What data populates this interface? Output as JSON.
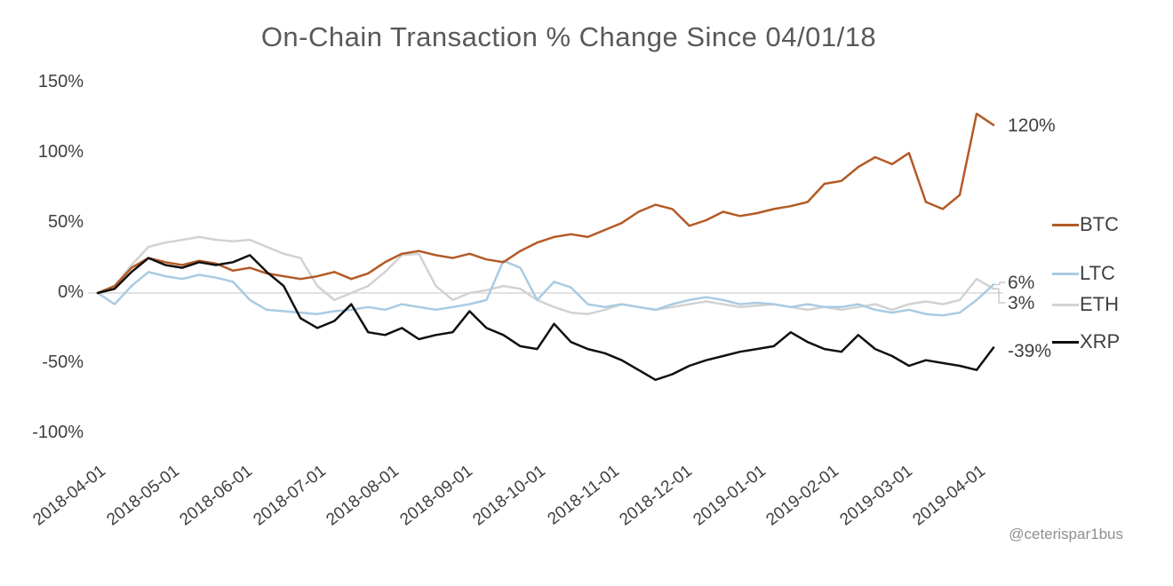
{
  "title": "On-Chain Transaction % Change Since 04/01/18",
  "watermark": "@ceterispar1bus",
  "chart_data": {
    "type": "line",
    "title": "On-Chain Transaction % Change Since 04/01/18",
    "xlabel": "",
    "ylabel": "",
    "ylim": [
      -100,
      150
    ],
    "grid": "horizontal zero line only",
    "legend_position": "right",
    "x": [
      "2018-04-01",
      "2018-04-08",
      "2018-04-15",
      "2018-04-22",
      "2018-04-29",
      "2018-05-06",
      "2018-05-13",
      "2018-05-20",
      "2018-05-27",
      "2018-06-03",
      "2018-06-10",
      "2018-06-17",
      "2018-06-24",
      "2018-07-01",
      "2018-07-08",
      "2018-07-15",
      "2018-07-22",
      "2018-07-29",
      "2018-08-05",
      "2018-08-12",
      "2018-08-19",
      "2018-08-26",
      "2018-09-02",
      "2018-09-09",
      "2018-09-16",
      "2018-09-23",
      "2018-09-30",
      "2018-10-07",
      "2018-10-14",
      "2018-10-21",
      "2018-10-28",
      "2018-11-04",
      "2018-11-11",
      "2018-11-18",
      "2018-11-25",
      "2018-12-02",
      "2018-12-09",
      "2018-12-16",
      "2018-12-23",
      "2018-12-30",
      "2019-01-06",
      "2019-01-13",
      "2019-01-20",
      "2019-01-27",
      "2019-02-03",
      "2019-02-10",
      "2019-02-17",
      "2019-02-24",
      "2019-03-03",
      "2019-03-10",
      "2019-03-17",
      "2019-03-24",
      "2019-03-31",
      "2019-04-07"
    ],
    "series": [
      {
        "name": "BTC",
        "color": "#b35a26",
        "end_label": "120%",
        "values": [
          0,
          5,
          18,
          25,
          22,
          20,
          23,
          21,
          16,
          18,
          14,
          12,
          10,
          12,
          15,
          10,
          14,
          22,
          28,
          30,
          27,
          25,
          28,
          24,
          22,
          30,
          36,
          40,
          42,
          40,
          45,
          50,
          58,
          63,
          60,
          48,
          52,
          58,
          55,
          57,
          60,
          62,
          65,
          78,
          80,
          90,
          97,
          92,
          100,
          65,
          60,
          70,
          128,
          120
        ]
      },
      {
        "name": "LTC",
        "color": "#a9cbe2",
        "end_label": "6%",
        "values": [
          0,
          -8,
          5,
          15,
          12,
          10,
          13,
          11,
          8,
          -5,
          -12,
          -13,
          -14,
          -15,
          -13,
          -12,
          -10,
          -12,
          -8,
          -10,
          -12,
          -10,
          -8,
          -5,
          23,
          18,
          -5,
          8,
          4,
          -8,
          -10,
          -8,
          -10,
          -12,
          -8,
          -5,
          -3,
          -5,
          -8,
          -7,
          -8,
          -10,
          -8,
          -10,
          -10,
          -8,
          -12,
          -14,
          -12,
          -15,
          -16,
          -14,
          -5,
          6
        ]
      },
      {
        "name": "ETH",
        "color": "#d2d2d2",
        "end_label": "3%",
        "values": [
          0,
          5,
          20,
          33,
          36,
          38,
          40,
          38,
          37,
          38,
          33,
          28,
          25,
          5,
          -5,
          0,
          5,
          15,
          27,
          28,
          5,
          -5,
          0,
          2,
          5,
          3,
          -5,
          -10,
          -14,
          -15,
          -12,
          -8,
          -10,
          -12,
          -10,
          -8,
          -6,
          -8,
          -10,
          -9,
          -8,
          -10,
          -12,
          -10,
          -12,
          -10,
          -8,
          -12,
          -8,
          -6,
          -8,
          -5,
          10,
          3
        ]
      },
      {
        "name": "XRP",
        "color": "#0f0f0f",
        "end_label": "-39%",
        "values": [
          0,
          3,
          15,
          25,
          20,
          18,
          22,
          20,
          22,
          27,
          15,
          5,
          -18,
          -25,
          -20,
          -8,
          -28,
          -30,
          -25,
          -33,
          -30,
          -28,
          -13,
          -25,
          -30,
          -38,
          -40,
          -22,
          -35,
          -40,
          -43,
          -48,
          -55,
          -62,
          -58,
          -52,
          -48,
          -45,
          -42,
          -40,
          -38,
          -28,
          -35,
          -40,
          -42,
          -30,
          -40,
          -45,
          -52,
          -48,
          -50,
          -52,
          -55,
          -39
        ]
      }
    ],
    "y_ticks": [
      "150%",
      "100%",
      "50%",
      "0%",
      "-50%",
      "-100%"
    ],
    "y_tick_values": [
      150,
      100,
      50,
      0,
      -50,
      -100
    ],
    "x_ticks": [
      "2018-04-01",
      "2018-05-01",
      "2018-06-01",
      "2018-07-01",
      "2018-08-01",
      "2018-09-01",
      "2018-10-01",
      "2018-11-01",
      "2018-12-01",
      "2019-01-01",
      "2019-02-01",
      "2019-03-01",
      "2019-04-01"
    ]
  }
}
